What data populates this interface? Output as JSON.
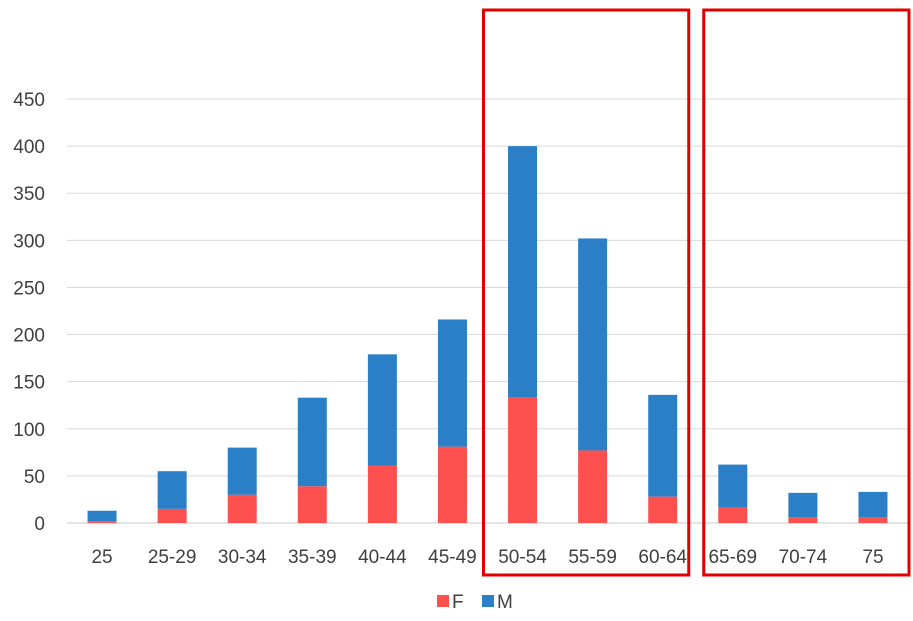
{
  "chart_data": {
    "type": "bar",
    "stacked": true,
    "categories": [
      "25",
      "25-29",
      "30-34",
      "35-39",
      "40-44",
      "45-49",
      "50-54",
      "55-59",
      "60-64",
      "65-69",
      "70-74",
      "75"
    ],
    "series": [
      {
        "name": "F",
        "color": "#ff5050",
        "values": [
          2,
          15,
          30,
          39,
          61,
          81,
          133,
          77,
          28,
          17,
          6,
          6
        ]
      },
      {
        "name": "M",
        "color": "#2a7fc7",
        "values": [
          11,
          40,
          50,
          94,
          118,
          135,
          267,
          225,
          108,
          45,
          26,
          27
        ]
      }
    ],
    "yticks": [
      0,
      50,
      100,
      150,
      200,
      250,
      300,
      350,
      400,
      450
    ],
    "ylim": [
      0,
      450
    ],
    "grid": true,
    "legend_position": "bottom",
    "highlight_color": "#e00000",
    "highlight_groups": [
      [
        "50-54",
        "55-59",
        "60-64"
      ],
      [
        "65-69",
        "70-74",
        "75"
      ]
    ]
  }
}
